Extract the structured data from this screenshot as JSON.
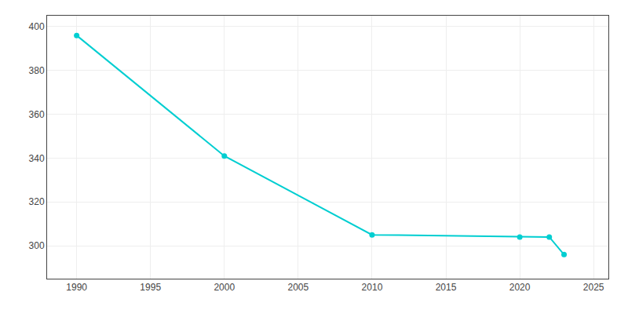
{
  "chart_data": {
    "type": "line",
    "x": [
      1990,
      2000,
      2010,
      2020,
      2022,
      2023
    ],
    "values": [
      396,
      341,
      305,
      304,
      304,
      296
    ],
    "color": "#00CED1",
    "marker": "circle",
    "xlim": [
      1988,
      2026
    ],
    "xticks": [
      1990,
      1995,
      2000,
      2005,
      2010,
      2015,
      2020,
      2025
    ],
    "ylim": [
      285,
      405
    ],
    "yticks": [
      300,
      320,
      340,
      360,
      380,
      400
    ],
    "grid": true
  }
}
